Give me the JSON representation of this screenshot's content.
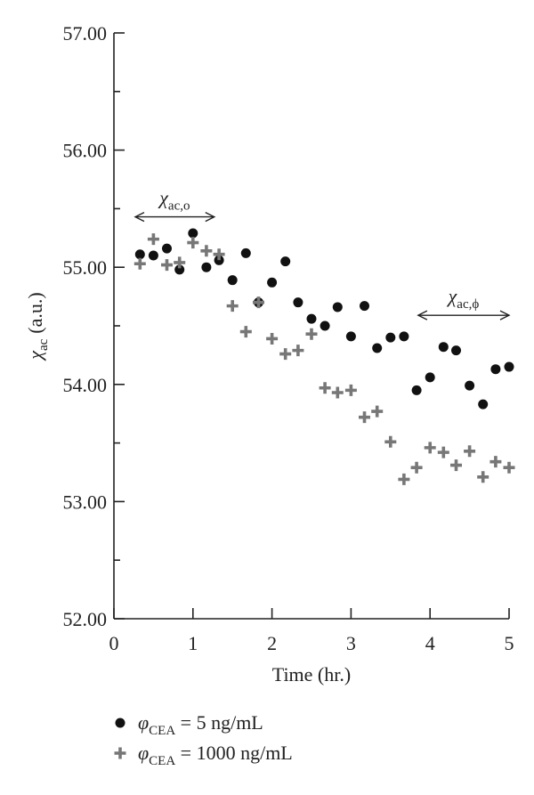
{
  "chart_data": {
    "type": "scatter",
    "xlabel": "Time (hr.)",
    "ylabel": "χac (a.u.)",
    "ylabel_parts": {
      "symbol": "χ",
      "sub": "ac",
      "unit": "(a.u.)"
    },
    "xlim": [
      0,
      5
    ],
    "ylim": [
      52.0,
      57.0
    ],
    "x_ticks": [
      0,
      1,
      2,
      3,
      4,
      5
    ],
    "x_tick_labels": [
      "0",
      "1",
      "2",
      "3",
      "4",
      "5"
    ],
    "y_ticks": [
      52.0,
      53.0,
      54.0,
      55.0,
      56.0,
      57.0
    ],
    "y_tick_labels": [
      "52.00",
      "53.00",
      "54.00",
      "55.00",
      "56.00",
      "57.00"
    ],
    "y_minor_step": 0.5,
    "grid": false,
    "legend_position": "bottom",
    "series": [
      {
        "name": "φCEA = 5 ng/mL",
        "label_parts": {
          "symbol": "φ",
          "sub": "CEA",
          "rest": " = 5 ng/mL"
        },
        "marker": "circle",
        "color": "#111111",
        "points": [
          [
            0.33,
            55.11
          ],
          [
            0.5,
            55.1
          ],
          [
            0.67,
            55.16
          ],
          [
            0.83,
            54.98
          ],
          [
            1.0,
            55.29
          ],
          [
            1.17,
            55.0
          ],
          [
            1.33,
            55.06
          ],
          [
            1.5,
            54.89
          ],
          [
            1.67,
            55.12
          ],
          [
            1.83,
            54.7
          ],
          [
            2.0,
            54.87
          ],
          [
            2.17,
            55.05
          ],
          [
            2.33,
            54.7
          ],
          [
            2.5,
            54.56
          ],
          [
            2.67,
            54.5
          ],
          [
            2.83,
            54.66
          ],
          [
            3.0,
            54.41
          ],
          [
            3.17,
            54.67
          ],
          [
            3.33,
            54.31
          ],
          [
            3.5,
            54.4
          ],
          [
            3.67,
            54.41
          ],
          [
            3.83,
            53.95
          ],
          [
            4.0,
            54.06
          ],
          [
            4.17,
            54.32
          ],
          [
            4.33,
            54.29
          ],
          [
            4.5,
            53.99
          ],
          [
            4.67,
            53.83
          ],
          [
            4.83,
            54.13
          ],
          [
            5.0,
            54.15
          ]
        ]
      },
      {
        "name": "φCEA = 1000 ng/mL",
        "label_parts": {
          "symbol": "φ",
          "sub": "CEA",
          "rest": " = 1000 ng/mL"
        },
        "marker": "plus",
        "color": "#777777",
        "points": [
          [
            0.33,
            55.03
          ],
          [
            0.5,
            55.24
          ],
          [
            0.67,
            55.02
          ],
          [
            0.83,
            55.04
          ],
          [
            1.0,
            55.21
          ],
          [
            1.17,
            55.14
          ],
          [
            1.33,
            55.11
          ],
          [
            1.5,
            54.67
          ],
          [
            1.67,
            54.45
          ],
          [
            1.83,
            54.7
          ],
          [
            2.0,
            54.39
          ],
          [
            2.17,
            54.26
          ],
          [
            2.33,
            54.29
          ],
          [
            2.5,
            54.43
          ],
          [
            2.67,
            53.97
          ],
          [
            2.83,
            53.93
          ],
          [
            3.0,
            53.95
          ],
          [
            3.17,
            53.72
          ],
          [
            3.33,
            53.77
          ],
          [
            3.5,
            53.51
          ],
          [
            3.67,
            53.19
          ],
          [
            3.83,
            53.29
          ],
          [
            4.0,
            53.46
          ],
          [
            4.17,
            53.42
          ],
          [
            4.33,
            53.31
          ],
          [
            4.5,
            53.43
          ],
          [
            4.67,
            53.21
          ],
          [
            4.83,
            53.34
          ],
          [
            5.0,
            53.29
          ]
        ]
      }
    ],
    "annotations": [
      {
        "text": "χac,o",
        "parts": {
          "symbol": "χ",
          "sub": "ac,o"
        },
        "x_range": [
          0.27,
          1.27
        ],
        "y": 55.43
      },
      {
        "text": "χac,ϕ",
        "parts": {
          "symbol": "χ",
          "sub": "ac,ϕ"
        },
        "x_range": [
          3.85,
          5.0
        ],
        "y": 54.59
      }
    ]
  }
}
